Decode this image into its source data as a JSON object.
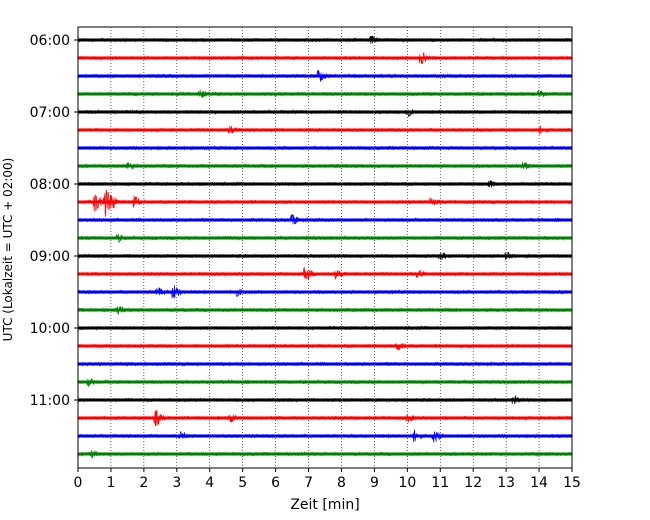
{
  "chart_data": {
    "type": "line",
    "title": "",
    "xlabel": "Zeit  [min]",
    "ylabel": "UTC (Lokalzeit = UTC + 02:00)",
    "xlim": [
      0,
      15
    ],
    "x_ticks": [
      "0",
      "1",
      "2",
      "3",
      "4",
      "5",
      "6",
      "7",
      "8",
      "9",
      "10",
      "11",
      "12",
      "13",
      "14",
      "15"
    ],
    "y_tick_labels": [
      "06:00",
      "07:00",
      "08:00",
      "09:00",
      "10:00",
      "11:00"
    ],
    "trace_interval_minutes": 15,
    "start_time": "06:00",
    "grid": "vertical dotted lines at each minute",
    "colors": [
      "#000000",
      "#ff0000",
      "#0000ff",
      "#008000"
    ],
    "series": [
      {
        "time": "06:00",
        "color": "#000000",
        "events": [
          {
            "x": 8.9,
            "amp": 3
          }
        ]
      },
      {
        "time": "06:15",
        "color": "#ff0000",
        "events": [
          {
            "x": 10.4,
            "amp": 5
          }
        ]
      },
      {
        "time": "06:30",
        "color": "#0000ff",
        "events": [
          {
            "x": 7.3,
            "amp": 6
          }
        ]
      },
      {
        "time": "06:45",
        "color": "#008000",
        "events": [
          {
            "x": 3.7,
            "amp": 3
          },
          {
            "x": 14.0,
            "amp": 3
          }
        ]
      },
      {
        "time": "07:00",
        "color": "#000000",
        "events": [
          {
            "x": 10.0,
            "amp": 3
          }
        ]
      },
      {
        "time": "07:15",
        "color": "#ff0000",
        "events": [
          {
            "x": 4.6,
            "amp": 3
          },
          {
            "x": 14.0,
            "amp": 3
          }
        ]
      },
      {
        "time": "07:30",
        "color": "#0000ff",
        "events": []
      },
      {
        "time": "07:45",
        "color": "#008000",
        "events": [
          {
            "x": 1.5,
            "amp": 3
          },
          {
            "x": 13.5,
            "amp": 3
          }
        ]
      },
      {
        "time": "08:00",
        "color": "#000000",
        "events": [
          {
            "x": 12.5,
            "amp": 3
          }
        ]
      },
      {
        "time": "08:15",
        "color": "#ff0000",
        "events": [
          {
            "x": 0.5,
            "amp": 9
          },
          {
            "x": 0.8,
            "amp": 14
          },
          {
            "x": 1.0,
            "amp": 6
          },
          {
            "x": 1.7,
            "amp": 5
          },
          {
            "x": 10.7,
            "amp": 3
          }
        ]
      },
      {
        "time": "08:30",
        "color": "#0000ff",
        "events": [
          {
            "x": 6.5,
            "amp": 4
          }
        ]
      },
      {
        "time": "08:45",
        "color": "#008000",
        "events": [
          {
            "x": 1.2,
            "amp": 3
          }
        ]
      },
      {
        "time": "09:00",
        "color": "#000000",
        "events": [
          {
            "x": 11.0,
            "amp": 3
          },
          {
            "x": 13.0,
            "amp": 3
          }
        ]
      },
      {
        "time": "09:15",
        "color": "#ff0000",
        "events": [
          {
            "x": 6.9,
            "amp": 7
          },
          {
            "x": 7.8,
            "amp": 4
          },
          {
            "x": 10.3,
            "amp": 3
          }
        ]
      },
      {
        "time": "09:30",
        "color": "#0000ff",
        "events": [
          {
            "x": 2.4,
            "amp": 4
          },
          {
            "x": 2.9,
            "amp": 7
          },
          {
            "x": 4.8,
            "amp": 3
          }
        ]
      },
      {
        "time": "09:45",
        "color": "#008000",
        "events": [
          {
            "x": 1.2,
            "amp": 3
          }
        ]
      },
      {
        "time": "10:00",
        "color": "#000000",
        "events": []
      },
      {
        "time": "10:15",
        "color": "#ff0000",
        "events": [
          {
            "x": 9.7,
            "amp": 3
          }
        ]
      },
      {
        "time": "10:30",
        "color": "#0000ff",
        "events": []
      },
      {
        "time": "10:45",
        "color": "#008000",
        "events": [
          {
            "x": 0.3,
            "amp": 3
          }
        ]
      },
      {
        "time": "11:00",
        "color": "#000000",
        "events": [
          {
            "x": 13.2,
            "amp": 3
          }
        ]
      },
      {
        "time": "11:15",
        "color": "#ff0000",
        "events": [
          {
            "x": 2.35,
            "amp": 7
          },
          {
            "x": 4.6,
            "amp": 4
          },
          {
            "x": 10.0,
            "amp": 3
          }
        ]
      },
      {
        "time": "11:30",
        "color": "#0000ff",
        "events": [
          {
            "x": 3.1,
            "amp": 3
          },
          {
            "x": 10.2,
            "amp": 5
          },
          {
            "x": 10.8,
            "amp": 5
          }
        ]
      },
      {
        "time": "11:45",
        "color": "#008000",
        "events": [
          {
            "x": 0.4,
            "amp": 3
          }
        ]
      }
    ]
  }
}
